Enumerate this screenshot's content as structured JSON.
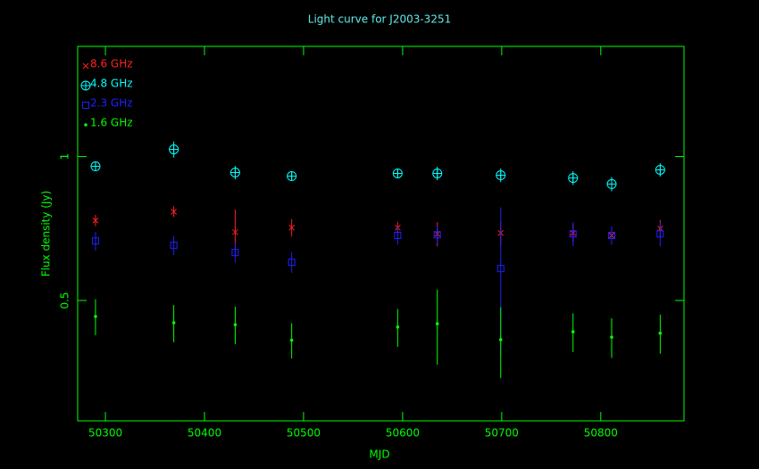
{
  "chart_data": {
    "type": "scatter",
    "title": "Light curve for J2003-3251",
    "x_label": "MJD",
    "y_label": "Flux density (Jy)",
    "xlim": [
      50272,
      50884
    ],
    "ylim": [
      0.28,
      1.7
    ],
    "log_y": true,
    "xticks": [
      50300,
      50400,
      50500,
      50600,
      50700,
      50800
    ],
    "yticks": [
      0.5,
      1
    ],
    "axis_color": "#00ff00",
    "title_color": "#60e8e8",
    "legend": "top-left",
    "series": [
      {
        "name": "8.6 GHz",
        "color": "#ff2020",
        "marker": "x",
        "x": [
          50290,
          50369,
          50431,
          50488,
          50595,
          50635,
          50699,
          50772,
          50811,
          50860
        ],
        "values": [
          0.735,
          0.767,
          0.695,
          0.71,
          0.71,
          0.689,
          0.692,
          0.692,
          0.684,
          0.707
        ],
        "errors": [
          0.02,
          0.02,
          0.08,
          0.03,
          0.02,
          0.04,
          0.04,
          0.03,
          0.03,
          0.03
        ]
      },
      {
        "name": "4.8 GHz",
        "color": "#00ffff",
        "marker": "circle-plus",
        "x": [
          50290,
          50369,
          50431,
          50488,
          50595,
          50635,
          50699,
          50772,
          50811,
          50860
        ],
        "values": [
          0.954,
          1.035,
          0.926,
          0.91,
          0.922,
          0.922,
          0.914,
          0.902,
          0.876,
          0.938
        ],
        "errors": [
          0.02,
          0.04,
          0.03,
          0.02,
          0.02,
          0.03,
          0.03,
          0.03,
          0.03,
          0.03
        ]
      },
      {
        "name": "2.3 GHz",
        "color": "#2020ff",
        "marker": "square",
        "x": [
          50290,
          50369,
          50431,
          50488,
          50595,
          50635,
          50699,
          50772,
          50811,
          50860
        ],
        "values": [
          0.666,
          0.652,
          0.63,
          0.601,
          0.684,
          0.686,
          0.583,
          0.689,
          0.684,
          0.689
        ],
        "errors": [
          0.03,
          0.03,
          0.03,
          0.03,
          0.03,
          0.03,
          0.2,
          0.04,
          0.03,
          0.04
        ]
      },
      {
        "name": "1.6 GHz",
        "color": "#00ff00",
        "marker": "dot",
        "x": [
          50290,
          50369,
          50431,
          50488,
          50595,
          50635,
          50699,
          50772,
          50811,
          50860
        ],
        "values": [
          0.463,
          0.449,
          0.445,
          0.413,
          0.44,
          0.447,
          0.414,
          0.43,
          0.419,
          0.427
        ],
        "errors": [
          0.04,
          0.04,
          0.04,
          0.035,
          0.04,
          0.08,
          0.07,
          0.04,
          0.04,
          0.04
        ]
      }
    ]
  }
}
